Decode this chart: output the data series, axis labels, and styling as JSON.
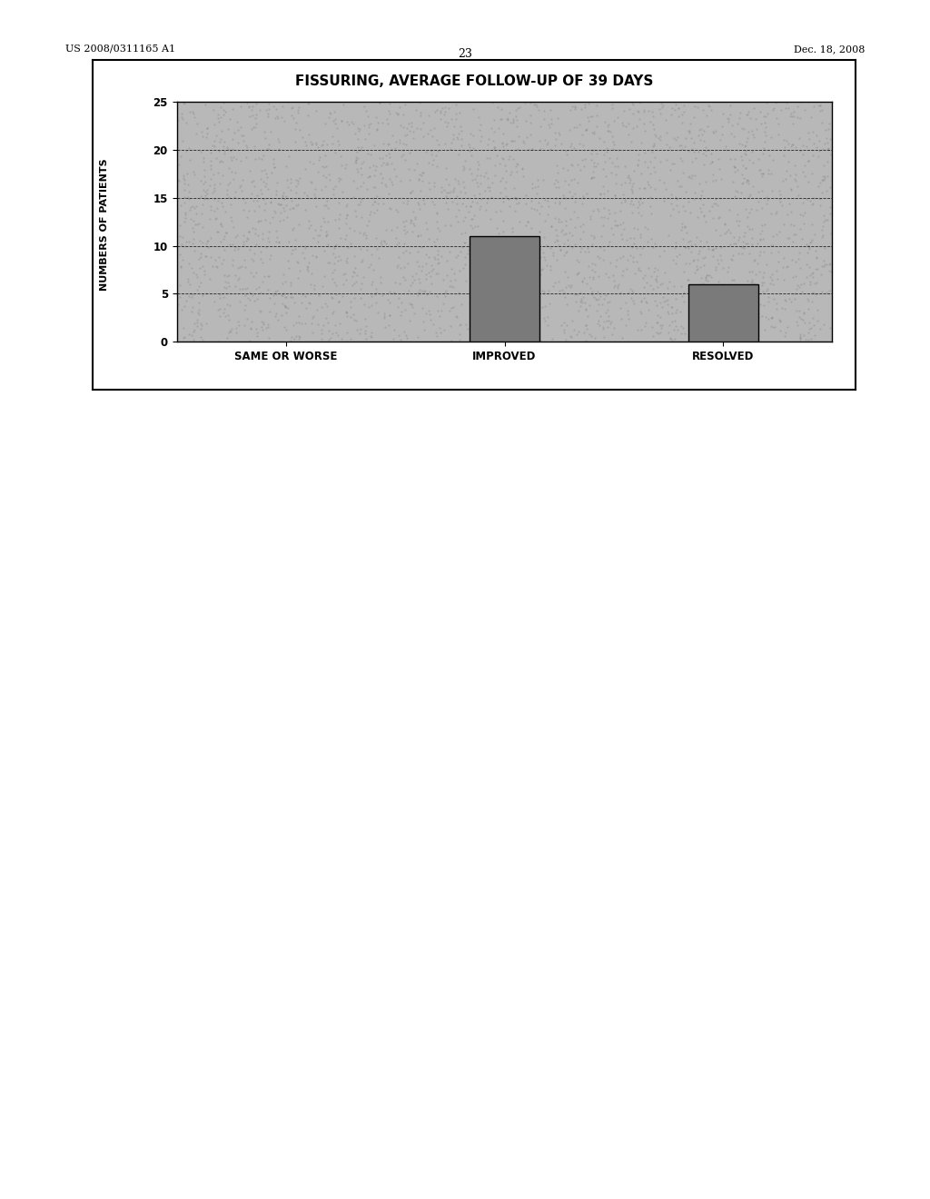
{
  "title": "FISSURING, AVERAGE FOLLOW-UP OF 39 DAYS",
  "categories": [
    "SAME OR WORSE",
    "IMPROVED",
    "RESOLVED"
  ],
  "values": [
    0,
    11,
    6
  ],
  "ylabel": "NUMBERS OF PATIENTS",
  "ylim": [
    0,
    25
  ],
  "yticks": [
    0,
    5,
    10,
    15,
    20,
    25
  ],
  "bar_color": "#7a7a7a",
  "plot_bg_color": "#b8b8b8",
  "header_left": "US 2008/0311165 A1",
  "header_right": "Dec. 18, 2008",
  "page_number": "23",
  "title_fontsize": 11,
  "axis_label_fontsize": 8,
  "tick_fontsize": 8.5,
  "header_fontsize": 8
}
